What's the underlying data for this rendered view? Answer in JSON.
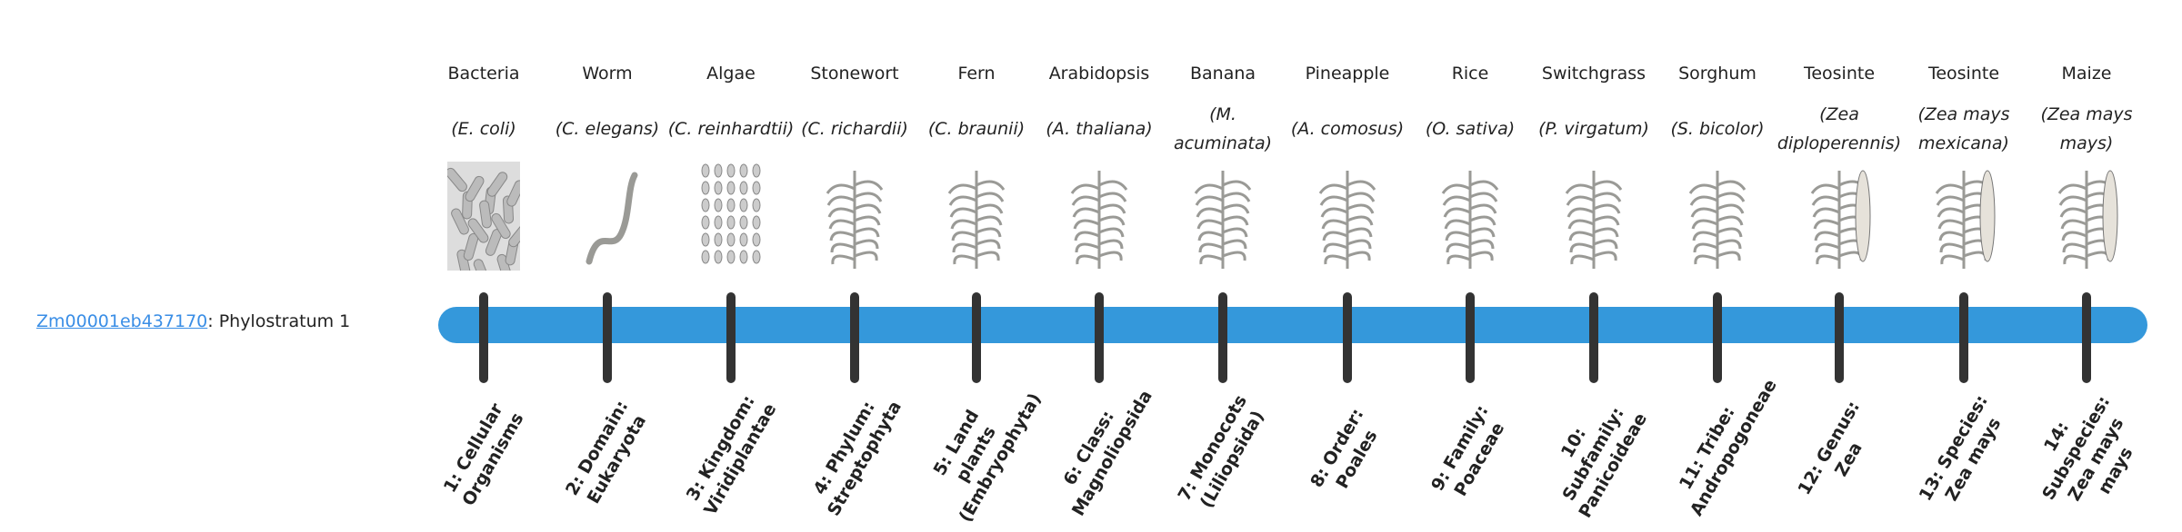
{
  "gene": {
    "id": "Zm00001eb437170",
    "suffix": ": Phylostratum 1"
  },
  "colors": {
    "bar": "#3498db",
    "tick": "#333333",
    "link": "#3a8ee6"
  },
  "strata": [
    {
      "common": "Bacteria",
      "scientific": "(E. coli)",
      "label": "1: Cellular Organisms",
      "icon": "bacteria-icon"
    },
    {
      "common": "Worm",
      "scientific": "(C. elegans)",
      "label": "2: Domain: Eukaryota",
      "icon": "worm-icon"
    },
    {
      "common": "Algae",
      "scientific": "(C. reinhardtii)",
      "label": "3: Kingdom: Viridiplantae",
      "icon": "algae-icon"
    },
    {
      "common": "Stonewort",
      "scientific": "(C. richardii)",
      "label": "4: Phylum: Streptophyta",
      "icon": "stonewort-icon"
    },
    {
      "common": "Fern",
      "scientific": "(C. braunii)",
      "label": "5: Land plants (Embryophyta)",
      "icon": "fern-icon"
    },
    {
      "common": "Arabidopsis",
      "scientific": "(A. thaliana)",
      "label": "6: Class: Magnoliopsida",
      "icon": "arabidopsis-icon"
    },
    {
      "common": "Banana",
      "scientific": "(M. acuminata)",
      "label": "7: Monocots (Liliopsida)",
      "icon": "banana-icon"
    },
    {
      "common": "Pineapple",
      "scientific": "(A. comosus)",
      "label": "8: Order: Poales",
      "icon": "pineapple-icon"
    },
    {
      "common": "Rice",
      "scientific": "(O. sativa)",
      "label": "9: Family: Poaceae",
      "icon": "rice-icon"
    },
    {
      "common": "Switchgrass",
      "scientific": "(P. virgatum)",
      "label": "10: Subfamily: Panicoideae",
      "icon": "switchgrass-icon"
    },
    {
      "common": "Sorghum",
      "scientific": "(S. bicolor)",
      "label": "11: Tribe: Andropogoneae",
      "icon": "sorghum-icon"
    },
    {
      "common": "Teosinte",
      "scientific": "(Zea diploperennis)",
      "label": "12: Genus: Zea",
      "icon": "teosinte-icon"
    },
    {
      "common": "Teosinte",
      "scientific": "(Zea mays mexicana)",
      "label": "13: Species: Zea mays",
      "icon": "teosinte-mexicana-icon"
    },
    {
      "common": "Maize",
      "scientific": "(Zea mays mays)",
      "label": "14: Subspecies: Zea mays mays",
      "icon": "maize-icon"
    }
  ]
}
